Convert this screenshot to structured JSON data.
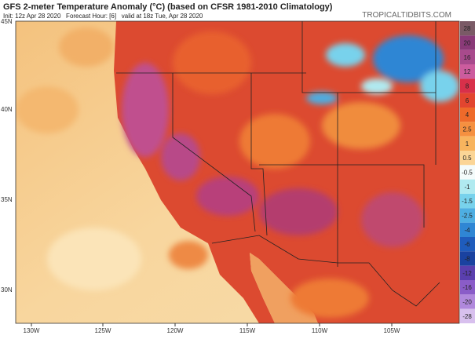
{
  "header": {
    "title": "GFS 2-meter Temperature Anomaly (°C) (based on CFSR 1981-2010 Climatology)",
    "subtitle": "Init: 12z Apr 28 2020   Forecast Hour: [6]   valid at 18z Tue, Apr 28 2020",
    "watermark": "TROPICALTIDBITS.COM"
  },
  "map": {
    "latitude_labels": [
      "45N",
      "40N",
      "35N",
      "30N"
    ],
    "longitude_labels": [
      "130W",
      "125W",
      "120W",
      "115W",
      "110W",
      "105W"
    ]
  },
  "colorbar": {
    "labels": [
      "28",
      "20",
      "16",
      "12",
      "8",
      "6",
      "4",
      "2.5",
      "1",
      "0.5",
      "-0.5",
      "-1",
      "-1.5",
      "-2.5",
      "-4",
      "-6",
      "-8",
      "-12",
      "-16",
      "-20",
      "-28"
    ],
    "colors": [
      "#7a5a66",
      "#8a3a78",
      "#a84a8c",
      "#cc5c9e",
      "#d8304a",
      "#e2452f",
      "#ee6a2a",
      "#f59040",
      "#f8b45e",
      "#fbd596",
      "#f4fbfb",
      "#b0eaf0",
      "#78d2ec",
      "#4eaee2",
      "#2f86d4",
      "#1f5cbc",
      "#1a42a0",
      "#5a3fae",
      "#8a5cc8",
      "#b088dc",
      "#d8c0ee"
    ]
  }
}
